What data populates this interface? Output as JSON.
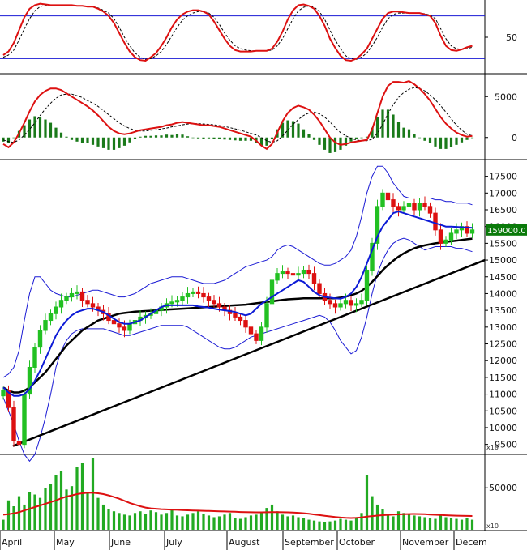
{
  "colors": {
    "up": "#22c022",
    "down": "#dd1111",
    "bollinger": "#1a1ad4",
    "sma": "#0d1bd6",
    "long_ma": "#000000",
    "trend": "#000000",
    "stoch_k": "#dd1111",
    "macd": "#dd1111",
    "macd_hist": "#1a7a1a",
    "volume": "#22aa22",
    "volume_ma": "#dd1111",
    "price_box": "#0a7a0a"
  },
  "chart_data": {
    "type": "line",
    "x": {
      "months": [
        "April",
        "May",
        "June",
        "July",
        "August",
        "September",
        "October",
        "November",
        "Decem"
      ]
    },
    "panels": {
      "stochastic": {
        "ticks": [
          "50"
        ],
        "ylim": [
          0,
          100
        ],
        "reference_lines": [
          20,
          80
        ],
        "k": [
          25,
          30,
          42,
          60,
          78,
          90,
          95,
          97,
          96,
          95,
          95,
          95,
          95,
          95,
          94,
          94,
          93,
          93,
          90,
          86,
          80,
          70,
          56,
          42,
          30,
          22,
          18,
          17,
          22,
          28,
          38,
          50,
          64,
          75,
          82,
          86,
          88,
          88,
          86,
          82,
          72,
          60,
          48,
          38,
          32,
          30,
          30,
          30,
          31,
          31,
          31,
          34,
          44,
          58,
          75,
          88,
          95,
          96,
          94,
          90,
          80,
          66,
          48,
          35,
          24,
          18,
          17,
          20,
          26,
          34,
          48,
          62,
          76,
          84,
          86,
          86,
          85,
          84,
          84,
          84,
          82,
          80,
          70,
          52,
          38,
          32,
          31,
          33,
          36,
          38
        ],
        "d": [
          22,
          25,
          32,
          46,
          62,
          76,
          87,
          93,
          95,
          95,
          95,
          95,
          95,
          95,
          94,
          94,
          93,
          93,
          91,
          88,
          84,
          76,
          64,
          50,
          38,
          28,
          22,
          19,
          20,
          24,
          30,
          40,
          52,
          64,
          74,
          80,
          84,
          86,
          86,
          84,
          78,
          68,
          56,
          46,
          38,
          34,
          32,
          31,
          31,
          31,
          31,
          32,
          38,
          48,
          62,
          76,
          87,
          92,
          94,
          92,
          86,
          75,
          60,
          46,
          34,
          24,
          20,
          19,
          22,
          28,
          38,
          50,
          64,
          76,
          82,
          84,
          84,
          84,
          84,
          84,
          83,
          81,
          76,
          62,
          48,
          38,
          34,
          33,
          34,
          36
        ]
      },
      "macd": {
        "ticks": [
          "5000",
          "0"
        ],
        "ylim": [
          -2500,
          7500
        ],
        "macd": [
          -800,
          -1200,
          -600,
          500,
          1800,
          3200,
          4400,
          5200,
          5700,
          6000,
          6000,
          5800,
          5400,
          5000,
          4600,
          4200,
          3800,
          3300,
          2700,
          2000,
          1300,
          800,
          500,
          400,
          500,
          700,
          900,
          1000,
          1100,
          1200,
          1300,
          1500,
          1600,
          1800,
          1900,
          1800,
          1700,
          1600,
          1500,
          1500,
          1400,
          1300,
          1100,
          900,
          700,
          500,
          300,
          100,
          -400,
          -1000,
          -1400,
          -800,
          600,
          2000,
          3000,
          3600,
          3900,
          3700,
          3400,
          2800,
          2000,
          1000,
          0,
          -600,
          -900,
          -800,
          -600,
          -500,
          -400,
          -300,
          1000,
          3000,
          5000,
          6300,
          6800,
          6800,
          6700,
          6900,
          6500,
          6000,
          5300,
          4500,
          3500,
          2500,
          1700,
          1100,
          600,
          300,
          100,
          200
        ],
        "signal": [
          -300,
          -500,
          -600,
          -300,
          300,
          1000,
          1800,
          2700,
          3500,
          4200,
          4800,
          5200,
          5300,
          5300,
          5100,
          4900,
          4500,
          4200,
          3800,
          3300,
          2800,
          2300,
          1800,
          1400,
          1100,
          900,
          800,
          800,
          900,
          950,
          1050,
          1150,
          1300,
          1400,
          1550,
          1650,
          1700,
          1700,
          1650,
          1600,
          1550,
          1450,
          1350,
          1200,
          1050,
          900,
          700,
          500,
          300,
          0,
          -400,
          -600,
          -400,
          200,
          900,
          1600,
          2200,
          2700,
          3000,
          3100,
          2900,
          2500,
          1900,
          1200,
          600,
          200,
          -100,
          -300,
          -400,
          -400,
          -200,
          500,
          1600,
          2900,
          4000,
          4900,
          5500,
          5900,
          6100,
          6000,
          5700,
          5200,
          4600,
          3900,
          3100,
          2300,
          1500,
          900,
          400,
          200
        ],
        "hist": [
          -500,
          -700,
          0,
          800,
          1500,
          2200,
          2600,
          2500,
          2200,
          1800,
          1200,
          600,
          100,
          -300,
          -500,
          -700,
          -700,
          -900,
          -1100,
          -1300,
          -1500,
          -1500,
          -1300,
          -1000,
          -600,
          -200,
          100,
          200,
          200,
          250,
          250,
          350,
          300,
          400,
          350,
          150,
          0,
          -100,
          -150,
          -100,
          -150,
          -150,
          -250,
          -300,
          -350,
          -400,
          -400,
          -400,
          -700,
          -1000,
          -1000,
          -200,
          1000,
          1800,
          2100,
          2000,
          1700,
          1000,
          400,
          -300,
          -900,
          -1500,
          -1900,
          -1800,
          -1500,
          -1000,
          -500,
          -200,
          0,
          100,
          1200,
          2500,
          3400,
          3400,
          2800,
          1900,
          1200,
          1000,
          400,
          0,
          -400,
          -700,
          -1100,
          -1400,
          -1400,
          -1200,
          -900,
          -600,
          -300,
          0
        ]
      },
      "price": {
        "ticks": [
          "17500",
          "17000",
          "16500",
          "16000",
          "15500",
          "15000",
          "14500",
          "14000",
          "13500",
          "13000",
          "12500",
          "12000",
          "11500",
          "11000",
          "10500",
          "10000",
          "9500"
        ],
        "ylim": [
          9250,
          17950
        ],
        "last_price_label": "159000.0",
        "scale_label": "x10",
        "close": [
          11100,
          10600,
          9600,
          9500,
          11000,
          11800,
          12400,
          12900,
          13200,
          13400,
          13600,
          13800,
          13900,
          14000,
          14050,
          13800,
          13700,
          13600,
          13500,
          13400,
          13200,
          13100,
          13000,
          12900,
          13100,
          13200,
          13300,
          13350,
          13400,
          13500,
          13600,
          13700,
          13750,
          13800,
          13900,
          14000,
          14050,
          14000,
          13900,
          13800,
          13700,
          13600,
          13500,
          13400,
          13300,
          13200,
          13000,
          12800,
          12600,
          13000,
          13700,
          14400,
          14600,
          14650,
          14600,
          14550,
          14600,
          14700,
          14600,
          14300,
          14000,
          13800,
          13700,
          13600,
          13700,
          13800,
          13650,
          13700,
          13800,
          14700,
          15500,
          16600,
          17000,
          16800,
          16600,
          16500,
          16600,
          16700,
          16500,
          16700,
          16600,
          16400,
          15900,
          15500,
          15600,
          15800,
          15900,
          16000,
          15800,
          15900
        ],
        "bb_mid": [
          11200,
          11050,
          10950,
          10950,
          11000,
          11150,
          11400,
          11700,
          12050,
          12400,
          12750,
          13000,
          13200,
          13350,
          13450,
          13500,
          13550,
          13550,
          13500,
          13450,
          13350,
          13250,
          13150,
          13100,
          13100,
          13150,
          13200,
          13300,
          13400,
          13500,
          13600,
          13650,
          13650,
          13650,
          13650,
          13650,
          13650,
          13620,
          13600,
          13580,
          13550,
          13520,
          13500,
          13480,
          13450,
          13400,
          13350,
          13400,
          13550,
          13700,
          13800,
          13900,
          14000,
          14100,
          14200,
          14300,
          14400,
          14350,
          14200,
          14050,
          13950,
          13900,
          13880,
          13860,
          13850,
          13900,
          14000,
          14200,
          14500,
          14900,
          15300,
          15700,
          16000,
          16200,
          16400,
          16450,
          16400,
          16350,
          16300,
          16250,
          16200,
          16150,
          16100,
          16050,
          16000,
          16000,
          15990,
          15980,
          15970,
          15960
        ],
        "bb_upper": [
          11500,
          11600,
          11800,
          12300,
          13200,
          14000,
          14500,
          14500,
          14300,
          14100,
          14000,
          13950,
          13900,
          13900,
          13950,
          14000,
          14050,
          14100,
          14100,
          14050,
          14000,
          13950,
          13900,
          13900,
          13950,
          14000,
          14100,
          14200,
          14300,
          14350,
          14400,
          14450,
          14500,
          14500,
          14500,
          14450,
          14400,
          14350,
          14300,
          14300,
          14300,
          14350,
          14400,
          14500,
          14600,
          14700,
          14800,
          14850,
          14900,
          14950,
          15000,
          15100,
          15300,
          15400,
          15450,
          15400,
          15300,
          15200,
          15100,
          15000,
          14900,
          14850,
          14850,
          14900,
          15000,
          15100,
          15300,
          15700,
          16300,
          17000,
          17500,
          17800,
          17800,
          17600,
          17300,
          17100,
          16900,
          16850,
          16850,
          16850,
          16850,
          16850,
          16800,
          16800,
          16750,
          16750,
          16700,
          16700,
          16700,
          16650
        ],
        "bb_lower": [
          10900,
          10500,
          10100,
          9600,
          9200,
          9000,
          9200,
          9700,
          10300,
          11000,
          11800,
          12300,
          12600,
          12800,
          12900,
          12950,
          12950,
          12950,
          12950,
          12950,
          12900,
          12850,
          12800,
          12750,
          12750,
          12800,
          12850,
          12900,
          12950,
          13000,
          13050,
          13050,
          13050,
          13050,
          13050,
          13000,
          12900,
          12800,
          12700,
          12600,
          12500,
          12400,
          12350,
          12350,
          12400,
          12500,
          12600,
          12700,
          12750,
          12800,
          12850,
          12900,
          12950,
          13000,
          13050,
          13100,
          13150,
          13200,
          13250,
          13300,
          13350,
          13300,
          13150,
          12900,
          12600,
          12400,
          12200,
          12300,
          12700,
          13300,
          14000,
          14600,
          15000,
          15300,
          15500,
          15600,
          15650,
          15600,
          15500,
          15400,
          15300,
          15350,
          15400,
          15400,
          15400,
          15400,
          15350,
          15350,
          15300,
          15250
        ],
        "long_ma": [
          11200,
          11100,
          11050,
          11050,
          11100,
          11200,
          11350,
          11500,
          11650,
          11850,
          12050,
          12250,
          12450,
          12600,
          12750,
          12900,
          13000,
          13100,
          13200,
          13250,
          13300,
          13350,
          13400,
          13420,
          13440,
          13460,
          13470,
          13480,
          13490,
          13500,
          13510,
          13520,
          13530,
          13540,
          13550,
          13560,
          13570,
          13580,
          13590,
          13600,
          13610,
          13620,
          13630,
          13640,
          13650,
          13660,
          13670,
          13690,
          13710,
          13730,
          13750,
          13770,
          13790,
          13810,
          13830,
          13840,
          13850,
          13860,
          13860,
          13860,
          13860,
          13860,
          13860,
          13860,
          13880,
          13910,
          13950,
          14000,
          14080,
          14200,
          14350,
          14520,
          14700,
          14850,
          14980,
          15100,
          15200,
          15280,
          15350,
          15400,
          15440,
          15470,
          15500,
          15520,
          15540,
          15560,
          15580,
          15600,
          15620,
          15640
        ],
        "trend_start": [
          0,
          9450
        ],
        "trend_end": [
          89,
          15000
        ]
      },
      "volume": {
        "ticks": [
          "50000"
        ],
        "ylim": [
          0,
          85000
        ],
        "scale_label": "x10",
        "values": [
          12000,
          35000,
          28000,
          40000,
          30000,
          45000,
          42000,
          38000,
          50000,
          55000,
          65000,
          70000,
          48000,
          52000,
          75000,
          80000,
          45000,
          85000,
          38000,
          30000,
          25000,
          22000,
          20000,
          18000,
          17000,
          20000,
          22000,
          19000,
          23000,
          21000,
          18000,
          20000,
          25000,
          17000,
          16000,
          18000,
          20000,
          22000,
          19000,
          17000,
          15000,
          16000,
          18000,
          20000,
          14000,
          13000,
          15000,
          17000,
          18000,
          20000,
          26000,
          30000,
          22000,
          18000,
          16000,
          17000,
          15000,
          14000,
          12000,
          11000,
          10000,
          9000,
          10000,
          11000,
          13000,
          12000,
          11000,
          15000,
          20000,
          65000,
          40000,
          30000,
          25000,
          18000,
          16000,
          22000,
          20000,
          18000,
          17000,
          16000,
          15000,
          14000,
          13000,
          18000,
          15000,
          14000,
          13000,
          12000,
          14000,
          12000
        ],
        "volume_ma": [
          18000,
          18500,
          19500,
          21000,
          23000,
          25000,
          27000,
          29000,
          31000,
          33000,
          35000,
          37500,
          39500,
          41000,
          42500,
          43500,
          44000,
          44000,
          43500,
          42500,
          41000,
          39000,
          37000,
          34500,
          32000,
          30000,
          28000,
          26500,
          25500,
          25000,
          24500,
          24200,
          24000,
          23800,
          23500,
          23200,
          23000,
          22800,
          22600,
          22400,
          22200,
          22000,
          21800,
          21600,
          21400,
          21200,
          21000,
          20900,
          20800,
          20800,
          20900,
          21000,
          21000,
          20900,
          20800,
          20600,
          20200,
          19700,
          19000,
          18300,
          17500,
          16700,
          15900,
          15200,
          14600,
          14200,
          14000,
          14200,
          14700,
          15600,
          16300,
          16900,
          17400,
          17800,
          18100,
          18400,
          18600,
          18700,
          18800,
          18700,
          18500,
          18200,
          17900,
          17600,
          17300,
          17000,
          16800,
          16600,
          16500,
          16400
        ]
      }
    }
  }
}
